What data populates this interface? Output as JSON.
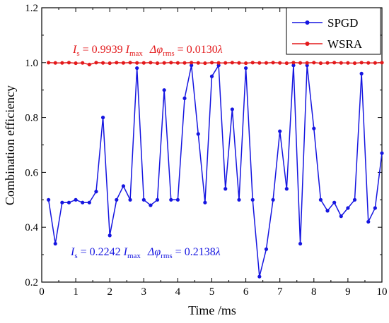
{
  "chart_data": {
    "type": "line",
    "xlabel": "Time /ms",
    "ylabel": "Combination efficiency",
    "xlim": [
      0,
      10
    ],
    "ylim": [
      0.2,
      1.2
    ],
    "xticks": [
      "0",
      "1",
      "2",
      "3",
      "4",
      "5",
      "6",
      "7",
      "8",
      "9",
      "10"
    ],
    "yticks": [
      "0.2",
      "0.4",
      "0.6",
      "0.8",
      "1.0",
      "1.2"
    ],
    "grid": false,
    "legend_position": "top-right",
    "series": [
      {
        "name": "SPGD",
        "color": "#1515e0",
        "x": [
          0.2,
          0.4,
          0.6,
          0.8,
          1.0,
          1.2,
          1.4,
          1.6,
          1.8,
          2.0,
          2.2,
          2.4,
          2.6,
          2.8,
          3.0,
          3.2,
          3.4,
          3.6,
          3.8,
          4.0,
          4.2,
          4.4,
          4.6,
          4.8,
          5.0,
          5.2,
          5.4,
          5.6,
          5.8,
          6.0,
          6.2,
          6.4,
          6.6,
          6.8,
          7.0,
          7.2,
          7.4,
          7.6,
          7.8,
          8.0,
          8.2,
          8.4,
          8.6,
          8.8,
          9.0,
          9.2,
          9.4,
          9.6,
          9.8,
          10.0
        ],
        "values": [
          0.5,
          0.34,
          0.49,
          0.49,
          0.5,
          0.49,
          0.49,
          0.53,
          0.8,
          0.37,
          0.5,
          0.55,
          0.5,
          0.98,
          0.5,
          0.48,
          0.5,
          0.9,
          0.5,
          0.5,
          0.87,
          0.99,
          0.74,
          0.49,
          0.95,
          0.99,
          0.54,
          0.83,
          0.5,
          0.98,
          0.5,
          0.22,
          0.32,
          0.5,
          0.75,
          0.54,
          0.99,
          0.34,
          0.99,
          0.76,
          0.5,
          0.46,
          0.49,
          0.44,
          0.47,
          0.5,
          0.96,
          0.42,
          0.47,
          0.67
        ]
      },
      {
        "name": "WSRA",
        "color": "#e31a1c",
        "x": [
          0.2,
          0.4,
          0.6,
          0.8,
          1.0,
          1.2,
          1.4,
          1.6,
          1.8,
          2.0,
          2.2,
          2.4,
          2.6,
          2.8,
          3.0,
          3.2,
          3.4,
          3.6,
          3.8,
          4.0,
          4.2,
          4.4,
          4.6,
          4.8,
          5.0,
          5.2,
          5.4,
          5.6,
          5.8,
          6.0,
          6.2,
          6.4,
          6.6,
          6.8,
          7.0,
          7.2,
          7.4,
          7.6,
          7.8,
          8.0,
          8.2,
          8.4,
          8.6,
          8.8,
          9.0,
          9.2,
          9.4,
          9.6,
          9.8,
          10.0
        ],
        "values": [
          1.0,
          0.999,
          0.999,
          1.0,
          0.998,
          0.999,
          0.993,
          1.0,
          0.999,
          0.998,
          1.0,
          0.999,
          1.0,
          0.999,
          0.999,
          1.0,
          0.998,
          0.999,
          1.0,
          0.999,
          0.999,
          1.0,
          0.999,
          0.998,
          1.0,
          0.999,
          0.999,
          1.0,
          0.999,
          0.998,
          1.0,
          0.999,
          0.999,
          1.0,
          0.999,
          0.998,
          1.0,
          0.999,
          0.999,
          1.0,
          0.998,
          0.999,
          1.0,
          0.999,
          0.999,
          0.998,
          1.0,
          0.999,
          0.999,
          1.0
        ]
      }
    ],
    "annotations": [
      {
        "series": "WSRA",
        "color": "#e31a1c",
        "is": "I",
        "is_sub": "s",
        "eq1": " = 0.9939 ",
        "imax": "I",
        "imax_sub": "max",
        "dphi": "Δφ",
        "dphi_sub": "rms",
        "eq2": " = 0.0130",
        "lambda": "λ"
      },
      {
        "series": "SPGD",
        "color": "#1515e0",
        "is": "I",
        "is_sub": "s",
        "eq1": " = 0.2242 ",
        "imax": "I",
        "imax_sub": "max",
        "dphi": "Δφ",
        "dphi_sub": "rms",
        "eq2": " = 0.2138",
        "lambda": "λ"
      }
    ]
  }
}
